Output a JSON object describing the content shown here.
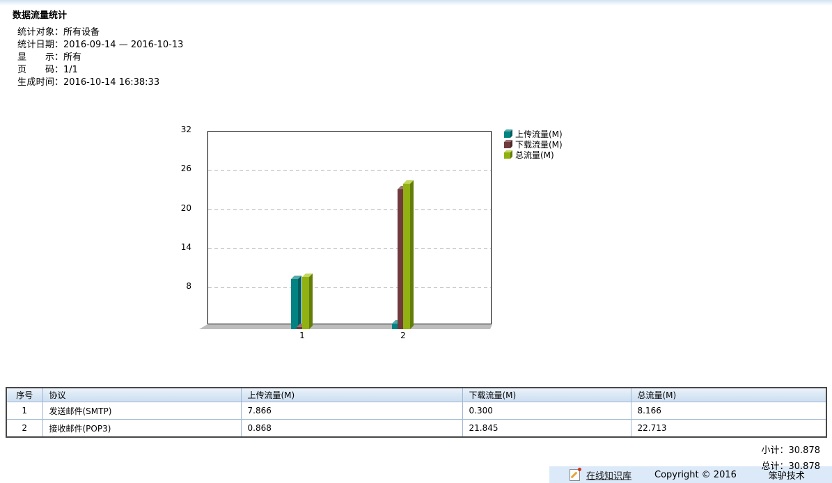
{
  "page": {
    "title": "数据流量统计"
  },
  "meta": {
    "colon": "：",
    "lines": [
      {
        "label": "统计对象",
        "value": "所有设备"
      },
      {
        "label": "统计日期",
        "value": "2016-09-14 — 2016-10-13"
      },
      {
        "label": "显示",
        "value": "所有"
      },
      {
        "label": "页码",
        "value": "1/1"
      },
      {
        "label": "生成时间",
        "value": "2016-10-14 16:38:33"
      }
    ]
  },
  "chart_data": {
    "type": "bar",
    "style": "3d-column",
    "categories": [
      "1",
      "2"
    ],
    "series": [
      {
        "name": "上传流量(M)",
        "values": [
          7.866,
          0.868
        ],
        "colors": {
          "front": "#018383",
          "top": "#58a9a9",
          "side": "#015c5c"
        }
      },
      {
        "name": "下载流量(M)",
        "values": [
          0.3,
          21.845
        ],
        "colors": {
          "front": "#703b3d",
          "top": "#9d7274",
          "side": "#4c2829"
        }
      },
      {
        "name": "总流量(M)",
        "values": [
          8.166,
          22.713
        ],
        "colors": {
          "front": "#90b111",
          "top": "#c3d75e",
          "side": "#637d08"
        }
      }
    ],
    "ylim": [
      0,
      32
    ],
    "yticks": [
      8,
      14,
      20,
      26,
      32
    ],
    "grid": "horizontal-dashed",
    "gridline_color": "#b3b3b3",
    "legend_position": "right",
    "floor_color": "#bdbdbd"
  },
  "table": {
    "headers": [
      "序号",
      "协议",
      "上传流量(M)",
      "下载流量(M)",
      "总流量(M)"
    ],
    "rows": [
      [
        "1",
        "发送邮件(SMTP)",
        "7.866",
        "0.300",
        "8.166"
      ],
      [
        "2",
        "接收邮件(POP3)",
        "0.868",
        "21.845",
        "22.713"
      ]
    ]
  },
  "totals": {
    "subtotal_label": "小计：",
    "subtotal_value": "30.878",
    "total_label": "总计：",
    "total_value": "30.878"
  },
  "footer": {
    "icon": "note-pencil-icon",
    "kb_link": "在线知识库",
    "copyright": "Copyright © 2016",
    "company": "笨驴技术"
  }
}
